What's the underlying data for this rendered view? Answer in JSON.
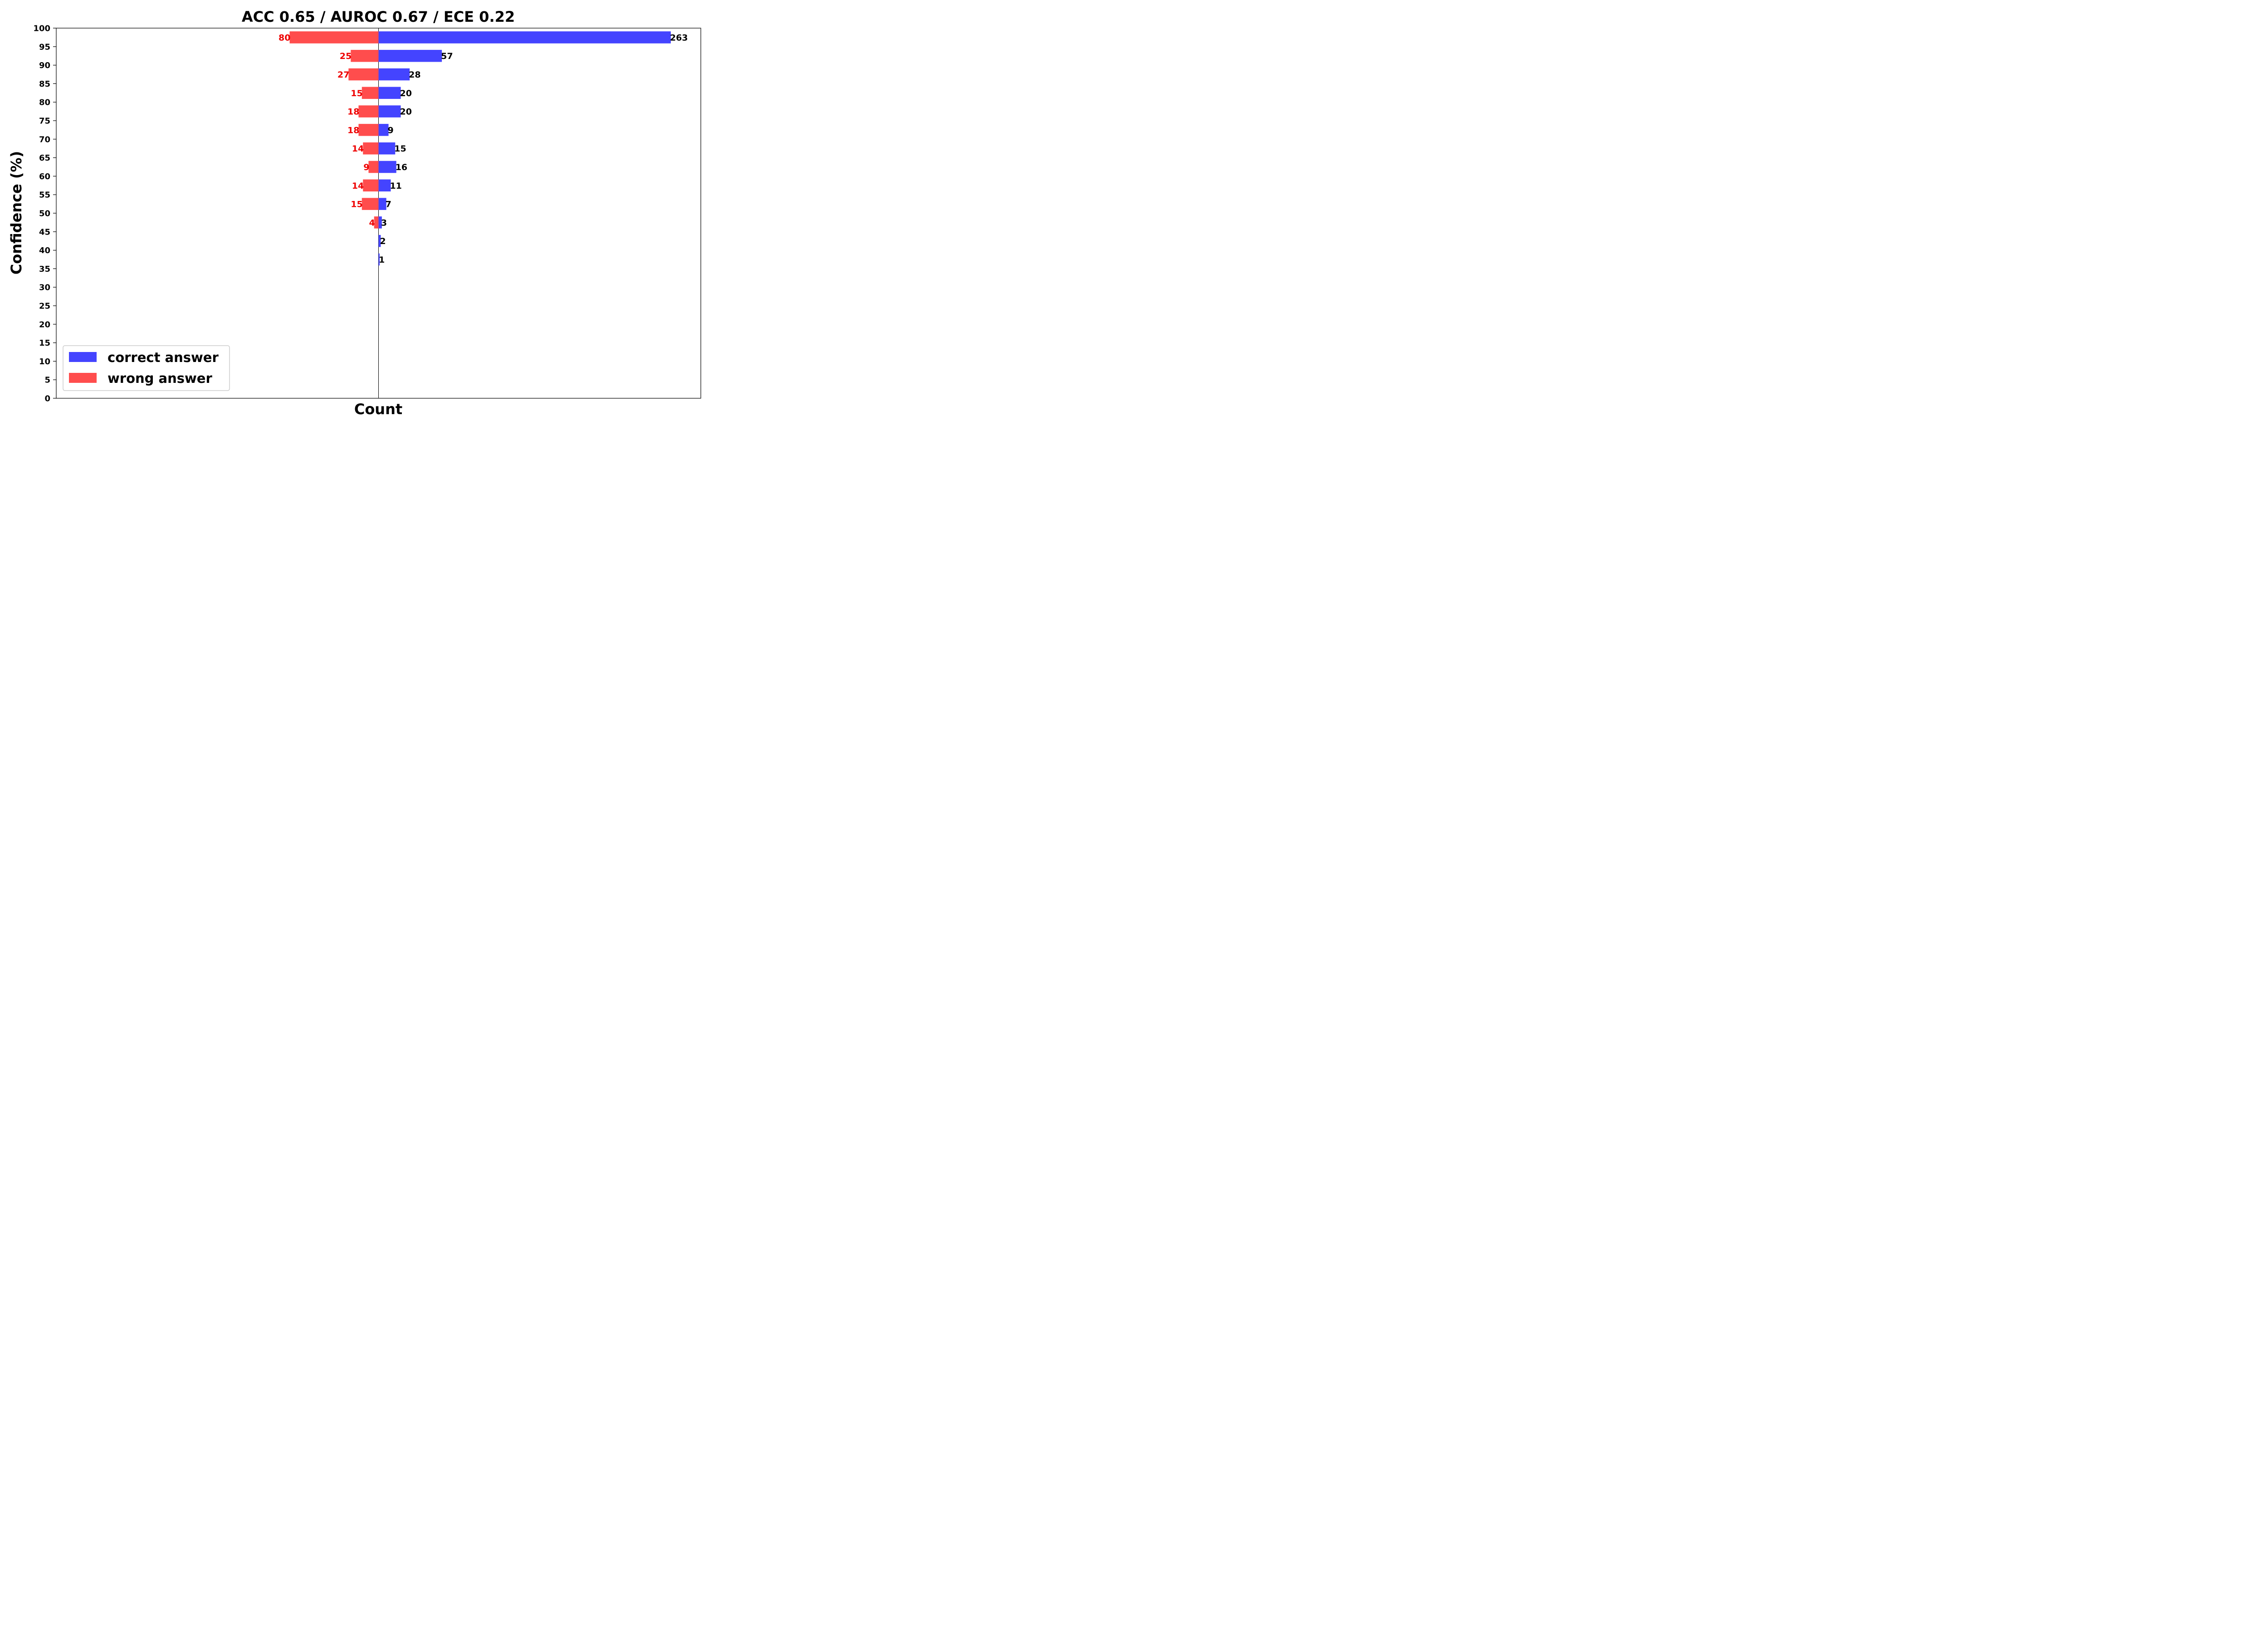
{
  "chart_data": {
    "type": "bar",
    "orientation": "horizontal-diverging",
    "title": "ACC 0.65 / AUROC 0.67 / ECE 0.22",
    "xlabel": "Count",
    "ylabel": "Confidence (%)",
    "ylim": [
      0,
      100
    ],
    "yticks": [
      0,
      5,
      10,
      15,
      20,
      25,
      30,
      35,
      40,
      45,
      50,
      55,
      60,
      65,
      70,
      75,
      80,
      85,
      90,
      95,
      100
    ],
    "xlim": [
      -290,
      290
    ],
    "grid": false,
    "legend_position": "lower-left",
    "categories": [
      97.5,
      92.5,
      87.5,
      82.5,
      77.5,
      72.5,
      67.5,
      62.5,
      57.5,
      52.5,
      47.5,
      42.5,
      37.5
    ],
    "series": [
      {
        "name": "correct answer",
        "color": "#4444ff",
        "label_color": "#000000",
        "direction": "right",
        "values": [
          263,
          57,
          28,
          20,
          20,
          9,
          15,
          16,
          11,
          7,
          3,
          2,
          1
        ]
      },
      {
        "name": "wrong answer",
        "color": "#ff4d4d",
        "label_color": "#ee0000",
        "direction": "left",
        "values": [
          80,
          25,
          27,
          15,
          18,
          18,
          14,
          9,
          14,
          15,
          4,
          0,
          0
        ]
      }
    ]
  }
}
